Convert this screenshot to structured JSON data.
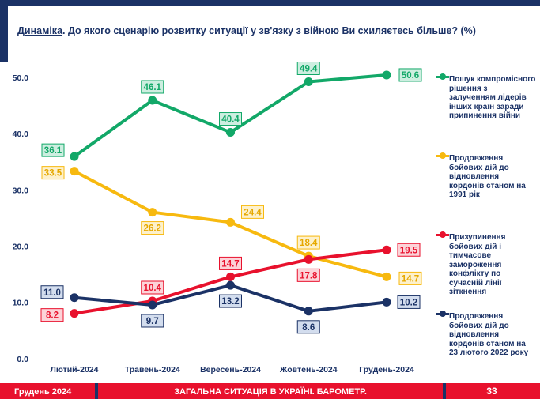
{
  "chart_data": {
    "type": "line",
    "title_lead": "Динаміка",
    "title": ". До якого сценарію розвитку ситуації у зв'язку з війною Ви схиляєтесь більше? (%)",
    "categories": [
      "Лютий-2024",
      "Травень-2024",
      "Вересень-2024",
      "Жовтень-2024",
      "Грудень-2024"
    ],
    "series": [
      {
        "name": "Пошук компромісного рішення з залученням лідерів інших країн заради припинення війни",
        "color": "#12a868",
        "values": [
          36.1,
          46.1,
          40.4,
          49.4,
          50.6
        ]
      },
      {
        "name": "Продовження бойових дій до відновлення кордонів станом на 1991 рік",
        "color": "#f7b90f",
        "values": [
          33.5,
          26.2,
          24.4,
          18.4,
          14.7
        ]
      },
      {
        "name": "Призупинення бойових дій і тимчасове замороження конфлікту по сучасній лінії зіткнення",
        "color": "#e8112d",
        "values": [
          8.2,
          10.4,
          14.7,
          17.8,
          19.5
        ]
      },
      {
        "name": "Продовження бойових дій до відновлення кордонів станом на 23 лютого 2022 року",
        "color": "#1b3266",
        "values": [
          11.0,
          9.7,
          13.2,
          8.6,
          10.2
        ],
        "value_labels": [
          "11.0",
          "9.7",
          "13.2",
          "8.6",
          "10.2"
        ]
      }
    ],
    "ylim": [
      0,
      52
    ],
    "yticks": [
      {
        "value": 0,
        "label": "0.0"
      },
      {
        "value": 10,
        "label": "10.0"
      },
      {
        "value": 20,
        "label": "20.0"
      },
      {
        "value": 30,
        "label": "30.0"
      },
      {
        "value": 40,
        "label": "40.0"
      },
      {
        "value": 50,
        "label": "50.0"
      }
    ],
    "grid": false
  },
  "footer": {
    "left": "Грудень 2024",
    "center": "ЗАГАЛЬНА СИТУАЦІЯ В УКРАЇНІ. БАРОМЕТР.",
    "page": "33"
  }
}
